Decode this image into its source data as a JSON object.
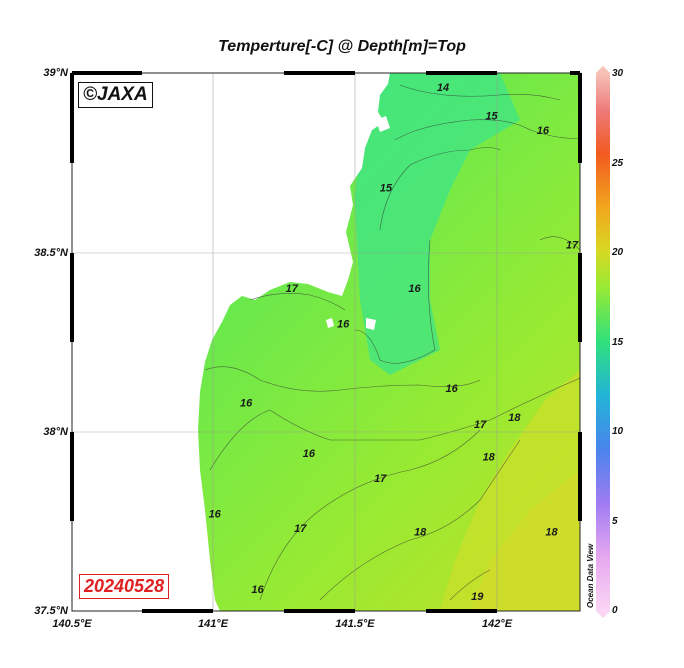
{
  "title": "Temperture[-C] @ Depth[m]=Top",
  "watermark": "©JAXA",
  "date": "20240528",
  "colorbar": {
    "credit": "Ocean Data View",
    "ticks": [
      "30",
      "25",
      "20",
      "15",
      "10",
      "5",
      "0"
    ]
  },
  "map": {
    "lat_labels": [
      "39°N",
      "38.5°N",
      "38°N",
      "37.5°N"
    ],
    "lon_labels": [
      "140.5°E",
      "141°E",
      "141.5°E",
      "142°E"
    ],
    "lat_range": [
      37.5,
      39.0
    ],
    "lon_range": [
      140.5,
      142.28
    ],
    "contour_labels": [
      {
        "text": "14",
        "lon": 141.8,
        "lat": 38.95
      },
      {
        "text": "15",
        "lon": 141.97,
        "lat": 38.87
      },
      {
        "text": "16",
        "lon": 142.15,
        "lat": 38.83
      },
      {
        "text": "15",
        "lon": 141.6,
        "lat": 38.67
      },
      {
        "text": "17",
        "lon": 142.27,
        "lat": 38.51
      },
      {
        "text": "17",
        "lon": 141.27,
        "lat": 38.39
      },
      {
        "text": "16",
        "lon": 141.7,
        "lat": 38.39
      },
      {
        "text": "16",
        "lon": 141.45,
        "lat": 38.29
      },
      {
        "text": "16",
        "lon": 141.11,
        "lat": 38.07
      },
      {
        "text": "16",
        "lon": 141.83,
        "lat": 38.11
      },
      {
        "text": "17",
        "lon": 141.93,
        "lat": 38.01
      },
      {
        "text": "18",
        "lon": 142.05,
        "lat": 38.03
      },
      {
        "text": "16",
        "lon": 141.33,
        "lat": 37.93
      },
      {
        "text": "18",
        "lon": 141.96,
        "lat": 37.92
      },
      {
        "text": "17",
        "lon": 141.58,
        "lat": 37.86
      },
      {
        "text": "16",
        "lon": 141.0,
        "lat": 37.76
      },
      {
        "text": "17",
        "lon": 141.3,
        "lat": 37.72
      },
      {
        "text": "18",
        "lon": 141.72,
        "lat": 37.71
      },
      {
        "text": "18",
        "lon": 142.18,
        "lat": 37.71
      },
      {
        "text": "16",
        "lon": 141.15,
        "lat": 37.55
      },
      {
        "text": "19",
        "lon": 141.92,
        "lat": 37.53
      }
    ]
  },
  "colors": {
    "ocean_cool": "#3fe27a",
    "ocean_mid": "#7fec3e",
    "ocean_warm": "#b9e52a",
    "land": "#ffffff"
  }
}
